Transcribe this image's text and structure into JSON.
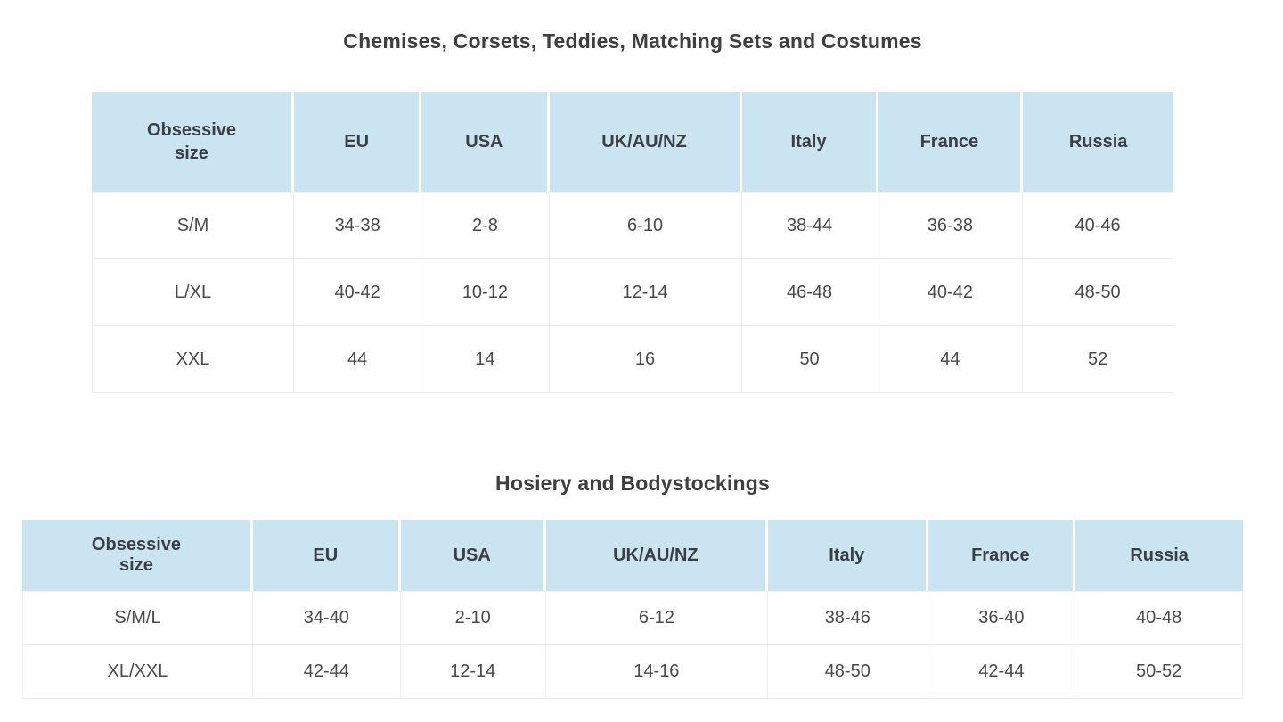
{
  "colors": {
    "header_background": "#cae4f2",
    "title_text": "#3e3e3e",
    "cell_text": "#4a4a4a",
    "row_border": "#ececec",
    "page_background": "#ffffff"
  },
  "tables": [
    {
      "title": "Chemises, Corsets, Teddies, Matching Sets and Costumes",
      "columns": [
        "Obsessive size",
        "EU",
        "USA",
        "UK/AU/NZ",
        "Italy",
        "France",
        "Russia"
      ],
      "rows": [
        [
          "S/M",
          "34-38",
          "2-8",
          "6-10",
          "38-44",
          "36-38",
          "40-46"
        ],
        [
          "L/XL",
          "40-42",
          "10-12",
          "12-14",
          "46-48",
          "40-42",
          "48-50"
        ],
        [
          "XXL",
          "44",
          "14",
          "16",
          "50",
          "44",
          "52"
        ]
      ]
    },
    {
      "title": "Hosiery and Bodystockings",
      "columns": [
        "Obsessive size",
        "EU",
        "USA",
        "UK/AU/NZ",
        "Italy",
        "France",
        "Russia"
      ],
      "rows": [
        [
          "S/M/L",
          "34-40",
          "2-10",
          "6-12",
          "38-46",
          "36-40",
          "40-48"
        ],
        [
          "XL/XXL",
          "42-44",
          "12-14",
          "14-16",
          "48-50",
          "42-44",
          "50-52"
        ]
      ]
    }
  ]
}
